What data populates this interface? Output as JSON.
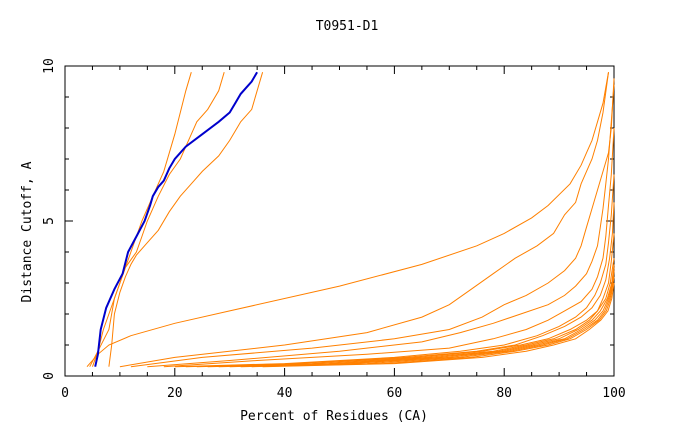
{
  "chart_data": {
    "type": "line",
    "title": "T0951-D1",
    "xlabel": "Percent of Residues (CA)",
    "ylabel": "Distance Cutoff, A",
    "xlim": [
      0,
      100
    ],
    "ylim": [
      0,
      10
    ],
    "x_ticks": [
      0,
      20,
      40,
      60,
      80,
      100
    ],
    "y_ticks": [
      0,
      5,
      10
    ],
    "grid": false,
    "colors": {
      "highlight": "#0000cc",
      "others": "#ff8000"
    },
    "highlight": {
      "x": [
        5.5,
        6,
        6.5,
        7.5,
        9,
        10.5,
        11.5,
        13,
        14.5,
        15.5,
        16,
        17,
        18,
        19,
        20,
        22,
        25,
        28,
        30,
        31,
        32,
        33,
        34,
        35
      ],
      "y": [
        0.3,
        0.7,
        1.5,
        2.2,
        2.8,
        3.3,
        4.0,
        4.5,
        5.0,
        5.5,
        5.8,
        6.1,
        6.3,
        6.7,
        7.0,
        7.4,
        7.8,
        8.2,
        8.5,
        8.8,
        9.1,
        9.3,
        9.5,
        9.8
      ]
    },
    "series": [
      {
        "x": [
          5,
          6,
          7,
          8,
          9,
          10,
          11,
          12,
          13,
          14,
          16,
          18,
          19,
          20,
          21,
          22,
          23
        ],
        "y": [
          0.3,
          0.8,
          1.5,
          2.0,
          2.5,
          3.0,
          3.5,
          4.0,
          4.5,
          5.0,
          5.8,
          6.6,
          7.2,
          7.8,
          8.5,
          9.2,
          9.8
        ]
      },
      {
        "x": [
          4.5,
          6,
          8,
          9,
          10,
          11,
          13,
          14,
          15,
          17,
          19,
          21,
          23,
          24,
          26,
          28,
          29
        ],
        "y": [
          0.3,
          0.8,
          1.5,
          2.5,
          3.0,
          3.5,
          4.0,
          4.5,
          5.0,
          5.8,
          6.5,
          7.0,
          7.8,
          8.2,
          8.6,
          9.2,
          9.8
        ]
      },
      {
        "x": [
          8,
          8.5,
          9,
          10,
          11,
          12,
          13,
          15,
          17,
          19,
          21,
          23,
          25,
          28,
          30,
          32,
          34,
          35,
          36
        ],
        "y": [
          0.3,
          1.0,
          2.0,
          2.7,
          3.2,
          3.6,
          3.9,
          4.3,
          4.7,
          5.3,
          5.8,
          6.2,
          6.6,
          7.1,
          7.6,
          8.2,
          8.6,
          9.2,
          9.8
        ]
      },
      {
        "x": [
          4,
          6,
          8,
          12,
          20,
          30,
          50,
          65,
          75,
          80,
          85,
          88,
          92,
          94,
          95,
          96,
          97,
          98,
          99
        ],
        "y": [
          0.3,
          0.7,
          1.0,
          1.3,
          1.7,
          2.1,
          2.9,
          3.6,
          4.2,
          4.6,
          5.1,
          5.5,
          6.2,
          6.8,
          7.2,
          7.6,
          8.2,
          8.8,
          9.8
        ]
      },
      {
        "x": [
          10,
          20,
          40,
          55,
          65,
          70,
          74,
          78,
          82,
          86,
          89,
          91,
          93,
          94,
          95,
          96,
          97,
          98,
          99
        ],
        "y": [
          0.3,
          0.6,
          1.0,
          1.4,
          1.9,
          2.3,
          2.8,
          3.3,
          3.8,
          4.2,
          4.6,
          5.2,
          5.6,
          6.2,
          6.6,
          7.0,
          7.6,
          8.5,
          9.8
        ]
      },
      {
        "x": [
          12,
          25,
          45,
          60,
          70,
          76,
          80,
          84,
          88,
          91,
          93,
          94,
          95,
          96,
          97,
          98,
          99,
          99.5,
          100
        ],
        "y": [
          0.3,
          0.6,
          0.9,
          1.2,
          1.5,
          1.9,
          2.3,
          2.6,
          3.0,
          3.4,
          3.8,
          4.2,
          4.8,
          5.4,
          6.0,
          6.6,
          7.2,
          8.0,
          9.6
        ]
      },
      {
        "x": [
          15,
          30,
          50,
          65,
          72,
          78,
          83,
          88,
          91,
          93,
          95,
          96,
          97,
          97.5,
          98,
          98.5,
          99,
          99.5,
          100
        ],
        "y": [
          0.3,
          0.5,
          0.8,
          1.1,
          1.4,
          1.7,
          2.0,
          2.3,
          2.6,
          2.9,
          3.3,
          3.7,
          4.2,
          4.8,
          5.4,
          6.2,
          7.0,
          8.2,
          9.4
        ]
      },
      {
        "x": [
          18,
          35,
          55,
          70,
          78,
          84,
          88,
          91,
          94,
          96,
          97,
          98,
          98.5,
          99,
          99.5,
          100
        ],
        "y": [
          0.3,
          0.5,
          0.7,
          0.9,
          1.2,
          1.5,
          1.8,
          2.1,
          2.4,
          2.8,
          3.2,
          3.8,
          4.5,
          5.5,
          6.5,
          8.0
        ]
      },
      {
        "x": [
          20,
          40,
          60,
          72,
          80,
          86,
          90,
          93,
          95,
          96.5,
          97.5,
          98.5,
          99,
          99.5,
          100
        ],
        "y": [
          0.3,
          0.4,
          0.6,
          0.8,
          1.0,
          1.3,
          1.6,
          1.9,
          2.2,
          2.6,
          3.0,
          3.6,
          4.3,
          5.2,
          6.5
        ]
      },
      {
        "x": [
          22,
          42,
          62,
          75,
          82,
          87,
          91,
          94,
          96,
          97.5,
          98.5,
          99.2,
          99.7,
          100
        ],
        "y": [
          0.3,
          0.4,
          0.6,
          0.8,
          1.0,
          1.3,
          1.6,
          1.9,
          2.2,
          2.6,
          3.1,
          3.8,
          4.6,
          5.6
        ]
      },
      {
        "x": [
          24,
          45,
          64,
          76,
          83,
          88,
          92,
          95,
          97,
          98,
          99,
          99.5,
          100
        ],
        "y": [
          0.3,
          0.4,
          0.6,
          0.8,
          1.0,
          1.2,
          1.5,
          1.8,
          2.1,
          2.5,
          3.0,
          3.7,
          4.6
        ]
      },
      {
        "x": [
          26,
          48,
          66,
          78,
          84,
          89,
          93,
          95.5,
          97,
          98.5,
          99.3,
          100
        ],
        "y": [
          0.3,
          0.4,
          0.6,
          0.8,
          1.0,
          1.2,
          1.5,
          1.8,
          2.1,
          2.5,
          3.0,
          3.8
        ]
      },
      {
        "x": [
          28,
          50,
          68,
          79,
          85,
          90,
          93.5,
          96,
          97.5,
          98.8,
          99.6,
          100
        ],
        "y": [
          0.3,
          0.4,
          0.6,
          0.8,
          1.0,
          1.2,
          1.5,
          1.8,
          2.1,
          2.5,
          3.0,
          3.6
        ]
      },
      {
        "x": [
          30,
          52,
          70,
          80,
          86,
          91,
          94,
          96.5,
          98,
          99,
          99.7,
          100
        ],
        "y": [
          0.3,
          0.4,
          0.6,
          0.8,
          1.0,
          1.2,
          1.5,
          1.8,
          2.1,
          2.5,
          3.0,
          3.5
        ]
      },
      {
        "x": [
          32,
          55,
          72,
          81,
          87,
          91.5,
          94.5,
          97,
          98.3,
          99.2,
          99.8,
          100
        ],
        "y": [
          0.3,
          0.4,
          0.6,
          0.8,
          1.0,
          1.2,
          1.5,
          1.8,
          2.1,
          2.5,
          3.0,
          3.4
        ]
      },
      {
        "x": [
          34,
          58,
          74,
          82,
          88,
          92,
          95,
          97.3,
          98.6,
          99.4,
          100
        ],
        "y": [
          0.3,
          0.4,
          0.6,
          0.8,
          1.0,
          1.2,
          1.5,
          1.8,
          2.1,
          2.5,
          3.2
        ]
      },
      {
        "x": [
          36,
          60,
          76,
          84,
          89,
          93,
          95.5,
          97.6,
          98.9,
          99.6,
          100
        ],
        "y": [
          0.3,
          0.4,
          0.6,
          0.8,
          1.0,
          1.2,
          1.5,
          1.8,
          2.1,
          2.5,
          3.0
        ]
      }
    ]
  }
}
